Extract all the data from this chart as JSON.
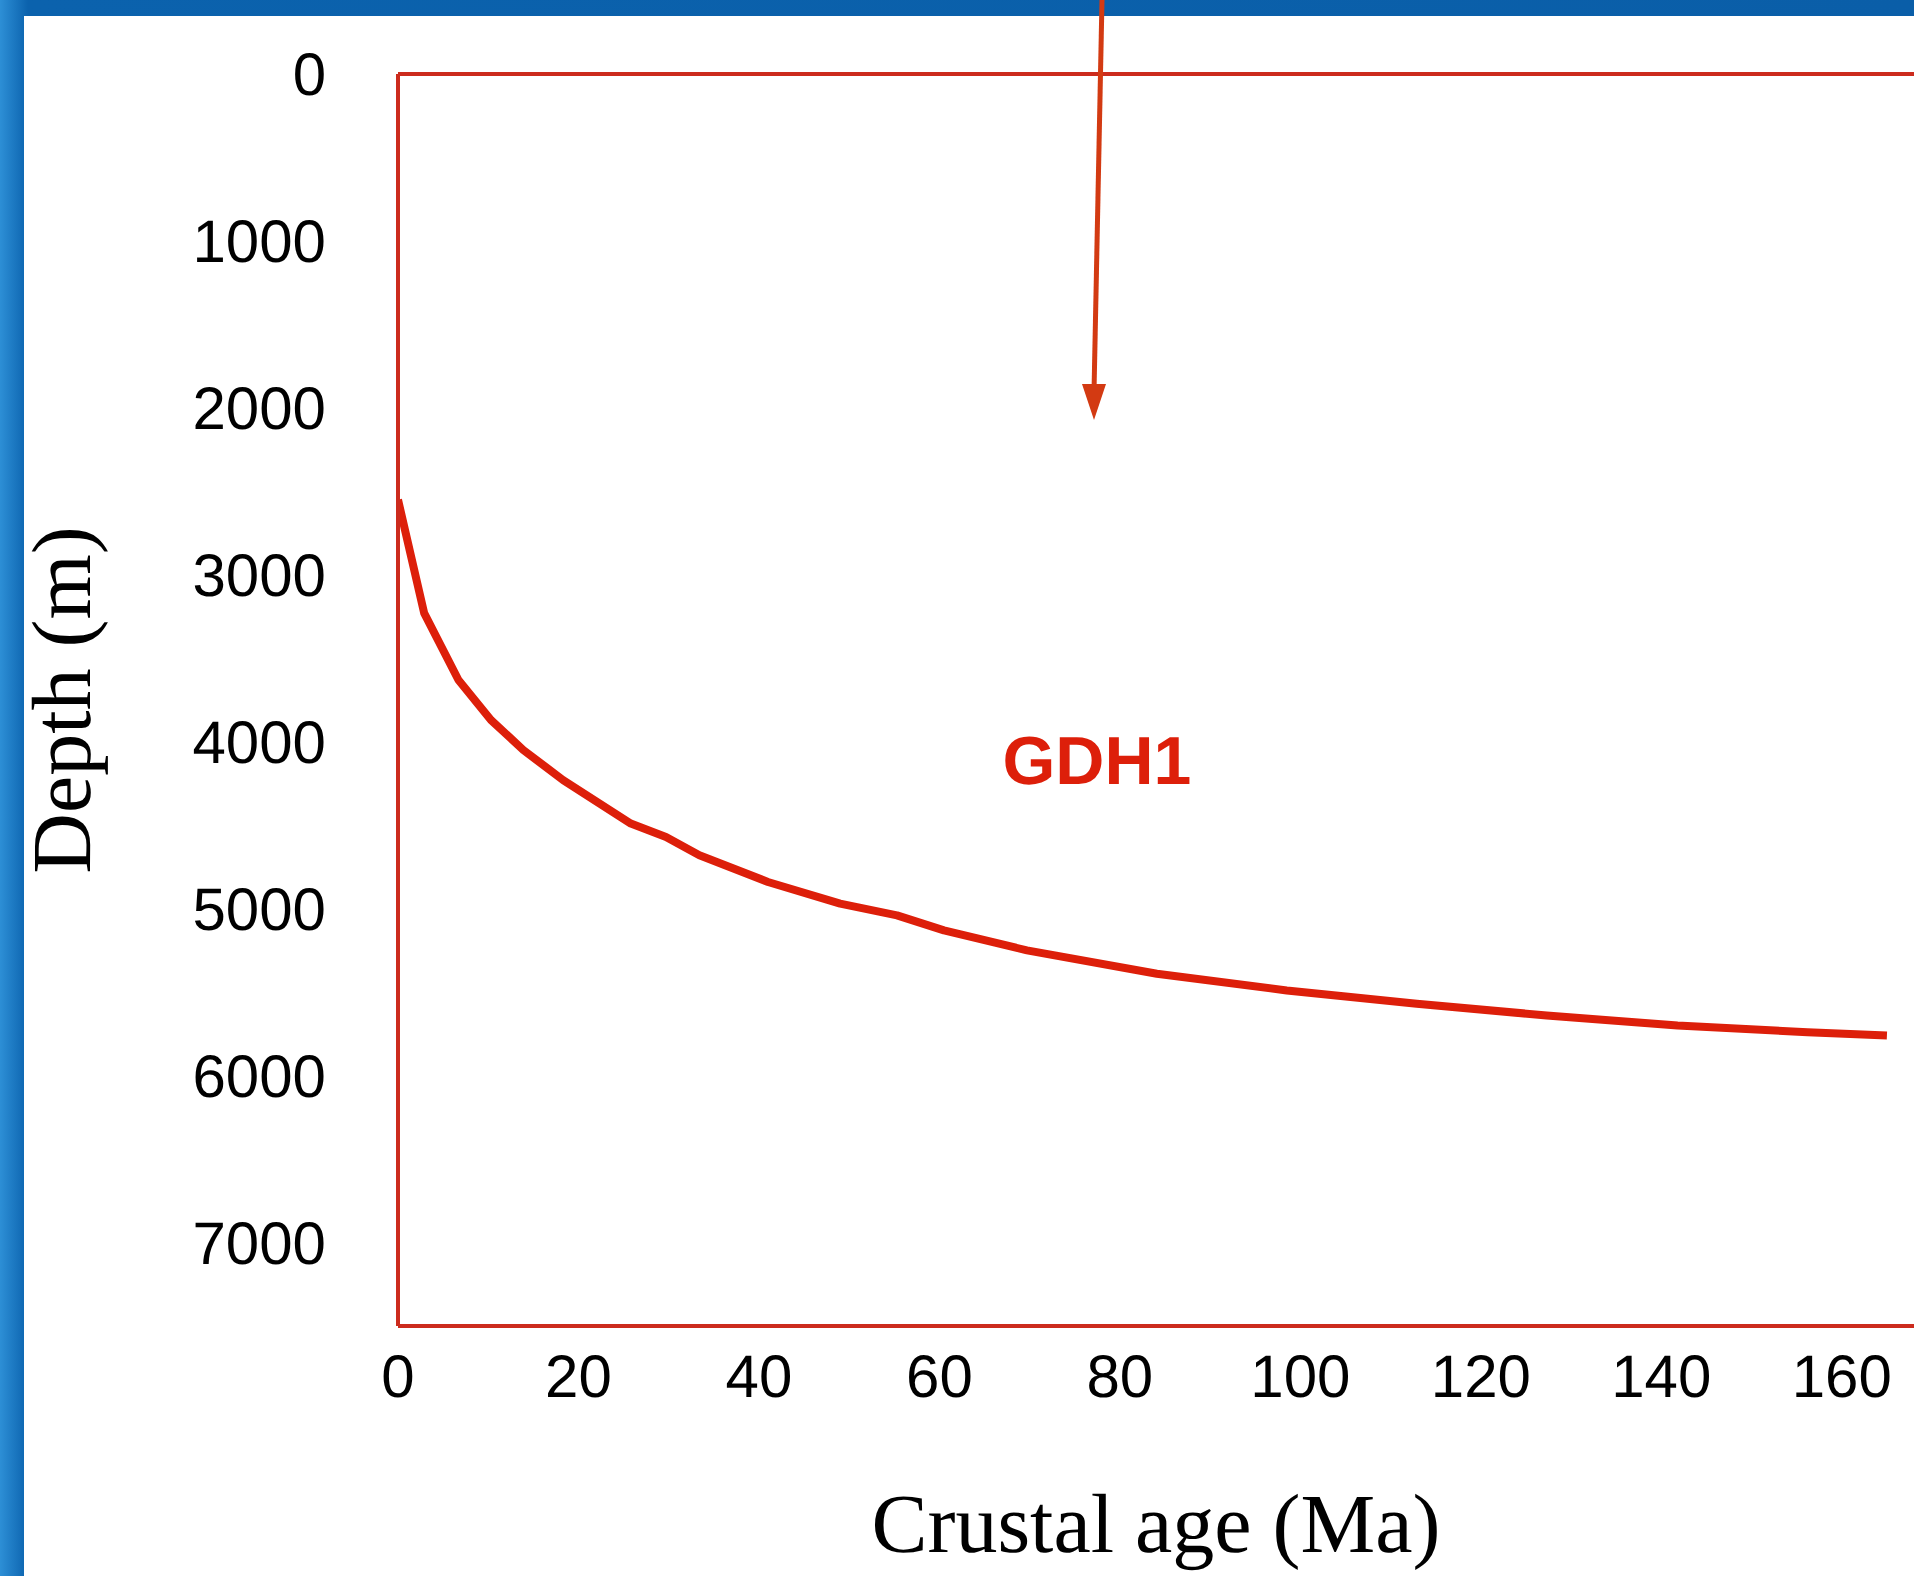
{
  "chart_data": {
    "type": "line",
    "xlabel": "Crustal age (Ma)",
    "ylabel": "Depth (m)",
    "xlim": [
      0,
      168
    ],
    "xticks": [
      0,
      20,
      40,
      60,
      80,
      100,
      120,
      140,
      160
    ],
    "ylim": [
      7500,
      0
    ],
    "yticks": [
      0,
      1000,
      2000,
      3000,
      4000,
      5000,
      6000,
      7000
    ],
    "grid": false,
    "legend": false,
    "marker": "none",
    "line_style": "solid",
    "series": [
      {
        "name": "GDH1",
        "color": "#dd1f0a",
        "x": [
          0,
          2.9,
          6.7,
          10.3,
          13.9,
          18.3,
          25.8,
          29.7,
          33.4,
          41,
          49,
          55.3,
          60.5,
          69.7,
          84.1,
          98.5,
          112.9,
          127.3,
          141.8,
          156.2,
          165
        ],
        "values": [
          2550,
          3230,
          3630,
          3870,
          4050,
          4230,
          4490,
          4570,
          4680,
          4840,
          4970,
          5040,
          5130,
          5250,
          5390,
          5490,
          5570,
          5640,
          5700,
          5740,
          5760
        ]
      }
    ]
  }
}
